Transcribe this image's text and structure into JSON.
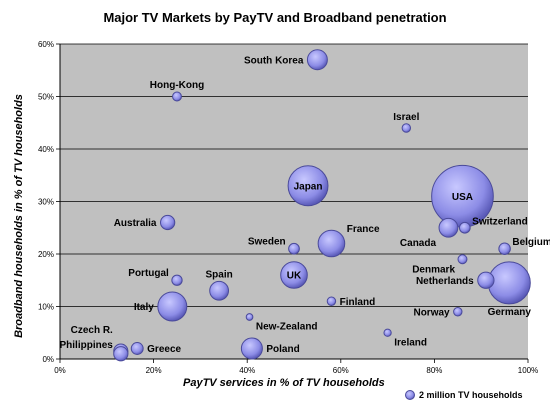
{
  "chart_data": {
    "type": "bubble",
    "title": "Major TV Markets by PayTV and Broadband penetration",
    "xlabel": "PayTV services in % of TV households",
    "ylabel": "Broadband households in % of TV households",
    "xlim": [
      0,
      100
    ],
    "ylim": [
      0,
      60
    ],
    "x_ticks": [
      "0%",
      "20%",
      "40%",
      "60%",
      "80%",
      "100%"
    ],
    "y_ticks": [
      "0%",
      "10%",
      "20%",
      "30%",
      "40%",
      "50%",
      "60%"
    ],
    "grid": "horizontal",
    "colors": {
      "plot_bg": "#c0c0c0",
      "bubble_fill": "#8c8ce6",
      "bubble_stroke": "#4a4a9a"
    },
    "legend": {
      "label": "2 million TV households",
      "position": "bottom-right"
    },
    "points": [
      {
        "name": "South Korea",
        "x": 55,
        "y": 57,
        "size": 4.5,
        "label_side": "left"
      },
      {
        "name": "Hong-Kong",
        "x": 25,
        "y": 50,
        "size": 0.9,
        "label_side": "top"
      },
      {
        "name": "Israel",
        "x": 74,
        "y": 44,
        "size": 0.8,
        "label_side": "top"
      },
      {
        "name": "Japan",
        "x": 53,
        "y": 33,
        "size": 18,
        "label_side": "center"
      },
      {
        "name": "USA",
        "x": 86,
        "y": 31,
        "size": 43,
        "label_side": "center"
      },
      {
        "name": "Australia",
        "x": 23,
        "y": 26,
        "size": 2.3,
        "label_side": "left"
      },
      {
        "name": "France",
        "x": 58,
        "y": 22,
        "size": 8,
        "label_side": "right-up"
      },
      {
        "name": "Sweden",
        "x": 50,
        "y": 21,
        "size": 1.3,
        "label_side": "left-up"
      },
      {
        "name": "Canada",
        "x": 83,
        "y": 25,
        "size": 4,
        "label_side": "left-down"
      },
      {
        "name": "Switzerland",
        "x": 86.5,
        "y": 25,
        "size": 1.3,
        "label_side": "right-up"
      },
      {
        "name": "Belgium",
        "x": 95,
        "y": 21,
        "size": 1.5,
        "label_side": "right-up"
      },
      {
        "name": "Denmark",
        "x": 86,
        "y": 19,
        "size": 0.9,
        "label_side": "left-down"
      },
      {
        "name": "Netherlands",
        "x": 91,
        "y": 15,
        "size": 3,
        "label_side": "left"
      },
      {
        "name": "Germany",
        "x": 96,
        "y": 14.5,
        "size": 20,
        "label_side": "below"
      },
      {
        "name": "Portugal",
        "x": 25,
        "y": 15,
        "size": 1.2,
        "label_side": "left-up"
      },
      {
        "name": "Spain",
        "x": 34,
        "y": 13,
        "size": 4,
        "label_side": "top"
      },
      {
        "name": "UK",
        "x": 50,
        "y": 16,
        "size": 8,
        "label_side": "center"
      },
      {
        "name": "Finland",
        "x": 58,
        "y": 11,
        "size": 0.8,
        "label_side": "right"
      },
      {
        "name": "Italy",
        "x": 24,
        "y": 10,
        "size": 9.5,
        "label_side": "left"
      },
      {
        "name": "New-Zealand",
        "x": 40.5,
        "y": 8,
        "size": 0.5,
        "label_side": "right-down"
      },
      {
        "name": "Norway",
        "x": 85,
        "y": 9,
        "size": 0.8,
        "label_side": "left"
      },
      {
        "name": "Ireland",
        "x": 70,
        "y": 5,
        "size": 0.6,
        "label_side": "right-down"
      },
      {
        "name": "Czech R.",
        "x": 13,
        "y": 1.5,
        "size": 2.3,
        "label_side": "left-up"
      },
      {
        "name": "Philippines",
        "x": 13,
        "y": 1,
        "size": 2.3,
        "label_side": "left"
      },
      {
        "name": "Greece",
        "x": 16.5,
        "y": 2,
        "size": 1.6,
        "label_side": "right"
      },
      {
        "name": "Poland",
        "x": 41,
        "y": 2,
        "size": 5,
        "label_side": "right"
      }
    ]
  }
}
